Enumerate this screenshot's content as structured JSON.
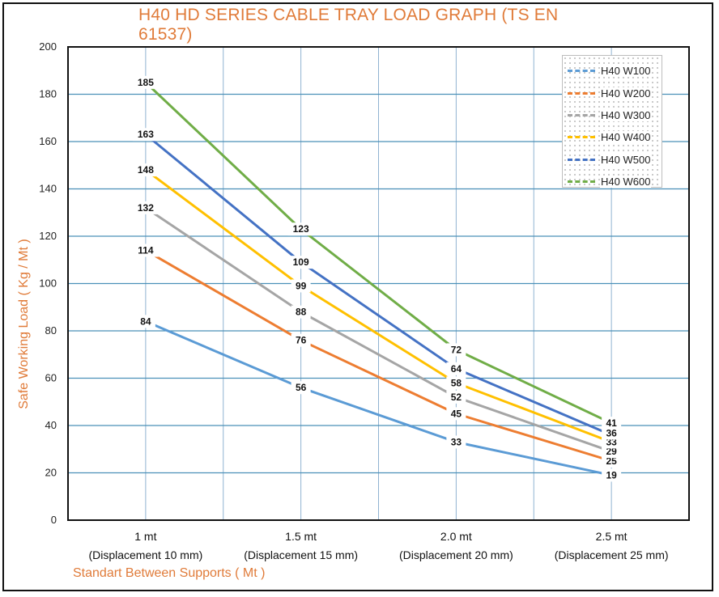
{
  "chart_data": {
    "type": "line",
    "title": "H40 HD SERIES CABLE TRAY LOAD GRAPH (TS EN 61537)",
    "xlabel": "Standart Between Supports ( Mt )",
    "ylabel": "Safe Working Load ( Kg / Mt )",
    "ylim": [
      0,
      200
    ],
    "yticks": [
      0,
      20,
      40,
      60,
      80,
      100,
      120,
      140,
      160,
      180,
      200
    ],
    "categories": [
      {
        "line1": "1 mt",
        "line2": "(Displacement 10 mm)"
      },
      {
        "line1": "1.5 mt",
        "line2": "(Displacement 15 mm)"
      },
      {
        "line1": "2.0 mt",
        "line2": "(Displacement 20 mm)"
      },
      {
        "line1": "2.5 mt",
        "line2": "(Displacement 25 mm)"
      }
    ],
    "series": [
      {
        "name": "H40 W100",
        "color": "#5b9bd5",
        "values": [
          84,
          56,
          33,
          19
        ]
      },
      {
        "name": "H40 W200",
        "color": "#ed7d31",
        "values": [
          114,
          76,
          45,
          25
        ]
      },
      {
        "name": "H40 W300",
        "color": "#a5a5a5",
        "values": [
          132,
          88,
          52,
          29
        ]
      },
      {
        "name": "H40 W400",
        "color": "#ffc000",
        "values": [
          148,
          99,
          58,
          33
        ]
      },
      {
        "name": "H40 W500",
        "color": "#4472c4",
        "values": [
          163,
          109,
          64,
          36
        ]
      },
      {
        "name": "H40 W600",
        "color": "#70ad47",
        "values": [
          185,
          123,
          72,
          41
        ]
      }
    ],
    "grid": true,
    "legend_position": "top-right"
  }
}
